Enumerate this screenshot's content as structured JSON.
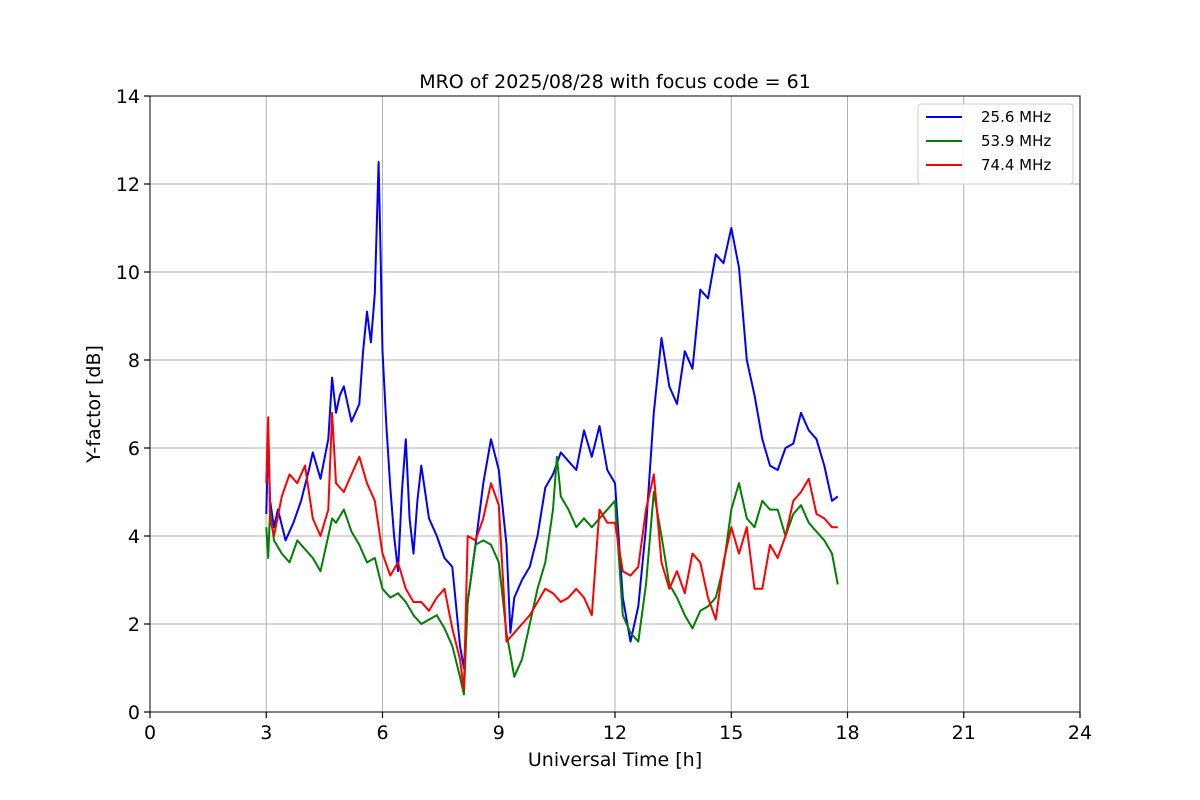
{
  "chart_data": {
    "type": "line",
    "title": "MRO of 2025/08/28 with focus code = 61",
    "xlabel": "Universal Time [h]",
    "ylabel": "Y-factor [dB]",
    "xlim": [
      0,
      24
    ],
    "ylim": [
      0,
      14
    ],
    "xticks": [
      0,
      3,
      6,
      9,
      12,
      15,
      18,
      21,
      24
    ],
    "xtick_labels": [
      "0",
      "3",
      "6",
      "9",
      "12",
      "15",
      "18",
      "21",
      "24"
    ],
    "yticks": [
      0,
      2,
      4,
      6,
      8,
      10,
      12,
      14
    ],
    "ytick_labels": [
      "0",
      "2",
      "4",
      "6",
      "8",
      "10",
      "12",
      "14"
    ],
    "grid": true,
    "legend_position": "top-right",
    "series": [
      {
        "name": "25.6 MHz",
        "color": "#0000ff",
        "x": [
          3.0,
          3.05,
          3.1,
          3.2,
          3.3,
          3.5,
          3.7,
          3.9,
          4.1,
          4.2,
          4.4,
          4.6,
          4.7,
          4.8,
          4.9,
          5.0,
          5.2,
          5.4,
          5.5,
          5.6,
          5.7,
          5.8,
          5.9,
          5.95,
          6.0,
          6.1,
          6.2,
          6.3,
          6.4,
          6.5,
          6.6,
          6.7,
          6.8,
          6.9,
          7.0,
          7.2,
          7.4,
          7.6,
          7.8,
          8.0,
          8.1,
          8.2,
          8.4,
          8.6,
          8.8,
          9.0,
          9.2,
          9.3,
          9.4,
          9.6,
          9.8,
          10.0,
          10.2,
          10.4,
          10.6,
          10.8,
          11.0,
          11.2,
          11.4,
          11.6,
          11.8,
          12.0,
          12.2,
          12.4,
          12.6,
          12.8,
          13.0,
          13.2,
          13.4,
          13.6,
          13.8,
          14.0,
          14.2,
          14.4,
          14.6,
          14.8,
          15.0,
          15.2,
          15.4,
          15.6,
          15.8,
          16.0,
          16.2,
          16.4,
          16.6,
          16.8,
          17.0,
          17.2,
          17.4,
          17.6,
          17.75
        ],
        "y": [
          4.5,
          6.3,
          4.8,
          4.2,
          4.6,
          3.9,
          4.3,
          4.8,
          5.5,
          5.9,
          5.3,
          6.2,
          7.6,
          6.8,
          7.2,
          7.4,
          6.6,
          7.0,
          8.2,
          9.1,
          8.4,
          9.5,
          12.5,
          10.4,
          8.2,
          6.5,
          5.1,
          4.0,
          3.2,
          5.0,
          6.2,
          4.4,
          3.6,
          4.8,
          5.6,
          4.4,
          4.0,
          3.5,
          3.3,
          1.5,
          1.0,
          2.5,
          3.8,
          5.2,
          6.2,
          5.5,
          3.8,
          1.8,
          2.6,
          3.0,
          3.3,
          4.0,
          5.1,
          5.4,
          5.9,
          5.7,
          5.5,
          6.4,
          5.8,
          6.5,
          5.5,
          5.2,
          2.6,
          1.6,
          2.4,
          4.2,
          6.8,
          8.5,
          7.4,
          7.0,
          8.2,
          7.8,
          9.6,
          9.4,
          10.4,
          10.2,
          11.0,
          10.1,
          8.0,
          7.2,
          6.2,
          5.6,
          5.5,
          6.0,
          6.1,
          6.8,
          6.4,
          6.2,
          5.6,
          4.8,
          4.9
        ]
      },
      {
        "name": "53.9 MHz",
        "color": "#008000",
        "x": [
          3.0,
          3.05,
          3.1,
          3.2,
          3.4,
          3.6,
          3.8,
          4.0,
          4.2,
          4.4,
          4.6,
          4.7,
          4.8,
          5.0,
          5.2,
          5.4,
          5.6,
          5.8,
          6.0,
          6.2,
          6.4,
          6.6,
          6.8,
          7.0,
          7.2,
          7.4,
          7.6,
          7.8,
          8.0,
          8.1,
          8.2,
          8.4,
          8.6,
          8.8,
          9.0,
          9.2,
          9.4,
          9.6,
          9.8,
          10.0,
          10.2,
          10.4,
          10.5,
          10.6,
          10.8,
          11.0,
          11.2,
          11.4,
          11.6,
          11.8,
          12.0,
          12.2,
          12.4,
          12.6,
          12.8,
          13.0,
          13.2,
          13.4,
          13.6,
          13.8,
          14.0,
          14.2,
          14.4,
          14.6,
          14.8,
          15.0,
          15.2,
          15.4,
          15.6,
          15.8,
          16.0,
          16.2,
          16.4,
          16.6,
          16.8,
          17.0,
          17.2,
          17.4,
          17.6,
          17.75
        ],
        "y": [
          4.2,
          3.5,
          4.6,
          3.9,
          3.6,
          3.4,
          3.9,
          3.7,
          3.5,
          3.2,
          4.0,
          4.4,
          4.3,
          4.6,
          4.1,
          3.8,
          3.4,
          3.5,
          2.8,
          2.6,
          2.7,
          2.5,
          2.2,
          2.0,
          2.1,
          2.2,
          1.9,
          1.5,
          0.8,
          0.4,
          2.5,
          3.8,
          3.9,
          3.8,
          3.4,
          1.8,
          0.8,
          1.2,
          2.0,
          2.8,
          3.4,
          4.6,
          5.8,
          4.9,
          4.6,
          4.2,
          4.4,
          4.2,
          4.4,
          4.6,
          4.8,
          2.2,
          1.8,
          1.6,
          2.9,
          5.0,
          4.0,
          2.9,
          2.6,
          2.2,
          1.9,
          2.3,
          2.4,
          2.6,
          3.3,
          4.6,
          5.2,
          4.4,
          4.2,
          4.8,
          4.6,
          4.6,
          4.0,
          4.5,
          4.7,
          4.3,
          4.1,
          3.9,
          3.6,
          2.9
        ]
      },
      {
        "name": "74.4 MHz",
        "color": "#ff0000",
        "x": [
          3.0,
          3.05,
          3.1,
          3.2,
          3.4,
          3.6,
          3.8,
          4.0,
          4.2,
          4.4,
          4.6,
          4.7,
          4.8,
          5.0,
          5.2,
          5.4,
          5.6,
          5.8,
          6.0,
          6.2,
          6.4,
          6.6,
          6.8,
          7.0,
          7.2,
          7.4,
          7.6,
          7.8,
          8.0,
          8.1,
          8.2,
          8.4,
          8.6,
          8.8,
          9.0,
          9.2,
          9.4,
          9.6,
          9.8,
          10.0,
          10.2,
          10.4,
          10.6,
          10.8,
          11.0,
          11.2,
          11.4,
          11.6,
          11.8,
          12.0,
          12.2,
          12.4,
          12.6,
          12.8,
          13.0,
          13.2,
          13.4,
          13.6,
          13.8,
          14.0,
          14.2,
          14.4,
          14.6,
          14.8,
          15.0,
          15.2,
          15.4,
          15.6,
          15.8,
          16.0,
          16.2,
          16.4,
          16.6,
          16.8,
          17.0,
          17.2,
          17.4,
          17.6,
          17.75
        ],
        "y": [
          5.2,
          6.7,
          4.4,
          4.0,
          4.9,
          5.4,
          5.2,
          5.6,
          4.4,
          4.0,
          4.6,
          6.8,
          5.2,
          5.0,
          5.4,
          5.8,
          5.2,
          4.8,
          3.6,
          3.1,
          3.4,
          2.8,
          2.5,
          2.5,
          2.3,
          2.6,
          2.8,
          1.9,
          1.2,
          0.5,
          4.0,
          3.9,
          4.4,
          5.2,
          4.7,
          1.6,
          1.8,
          2.0,
          2.2,
          2.5,
          2.8,
          2.7,
          2.5,
          2.6,
          2.8,
          2.6,
          2.2,
          4.6,
          4.3,
          4.3,
          3.2,
          3.1,
          3.3,
          4.6,
          5.4,
          3.4,
          2.8,
          3.2,
          2.7,
          3.6,
          3.4,
          2.6,
          2.1,
          3.4,
          4.2,
          3.6,
          4.2,
          2.8,
          2.8,
          3.8,
          3.5,
          4.0,
          4.8,
          5.0,
          5.3,
          4.5,
          4.4,
          4.2,
          4.2
        ]
      }
    ]
  }
}
